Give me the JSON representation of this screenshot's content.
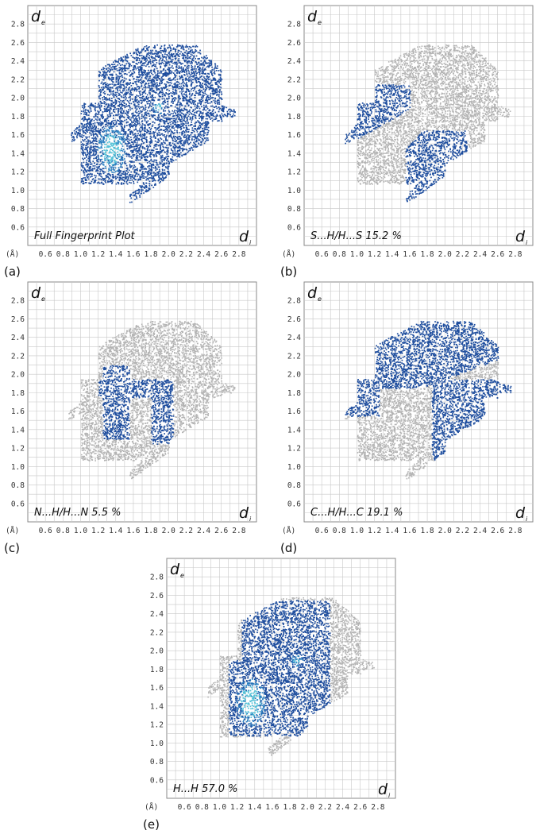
{
  "chart_data": [
    {
      "type": "heatmap",
      "panel_label": "(a)",
      "caption": "Full Fingerprint Plot",
      "xlabel_main": "d",
      "xlabel_sub": "i",
      "ylabel_main": "d",
      "ylabel_sub": "e",
      "unit": "(Å)",
      "xlim": [
        0.4,
        3.0
      ],
      "ylim": [
        0.4,
        3.0
      ],
      "x_ticks": [
        "0.6",
        "0.8",
        "1.0",
        "1.2",
        "1.4",
        "1.6",
        "1.8",
        "2.0",
        "2.2",
        "2.4",
        "2.6",
        "2.8"
      ],
      "y_ticks": [
        "0.6",
        "0.8",
        "1.0",
        "1.2",
        "1.4",
        "1.6",
        "1.8",
        "2.0",
        "2.2",
        "2.4",
        "2.6",
        "2.8"
      ],
      "highlight": "full",
      "grid": true
    },
    {
      "type": "heatmap",
      "panel_label": "(b)",
      "caption": "S...H/H...S   15.2 %",
      "xlabel_main": "d",
      "xlabel_sub": "i",
      "ylabel_main": "d",
      "ylabel_sub": "e",
      "unit": "(Å)",
      "xlim": [
        0.4,
        3.0
      ],
      "ylim": [
        0.4,
        3.0
      ],
      "x_ticks": [
        "0.6",
        "0.8",
        "1.0",
        "1.2",
        "1.4",
        "1.6",
        "1.8",
        "2.0",
        "2.2",
        "2.4",
        "2.6",
        "2.8"
      ],
      "y_ticks": [
        "0.6",
        "0.8",
        "1.0",
        "1.2",
        "1.4",
        "1.6",
        "1.8",
        "2.0",
        "2.2",
        "2.4",
        "2.6",
        "2.8"
      ],
      "highlight": "spikes",
      "grid": true
    },
    {
      "type": "heatmap",
      "panel_label": "(c)",
      "caption": "N...H/H...N  5.5 %",
      "xlabel_main": "d",
      "xlabel_sub": "i",
      "ylabel_main": "d",
      "ylabel_sub": "e",
      "unit": "(Å)",
      "xlim": [
        0.4,
        3.0
      ],
      "ylim": [
        0.4,
        3.0
      ],
      "x_ticks": [
        "0.6",
        "0.8",
        "1.0",
        "1.2",
        "1.4",
        "1.6",
        "1.8",
        "2.0",
        "2.2",
        "2.4",
        "2.6",
        "2.8"
      ],
      "y_ticks": [
        "0.6",
        "0.8",
        "1.0",
        "1.2",
        "1.4",
        "1.6",
        "1.8",
        "2.0",
        "2.2",
        "2.4",
        "2.6",
        "2.8"
      ],
      "highlight": "inner",
      "grid": true
    },
    {
      "type": "heatmap",
      "panel_label": "(d)",
      "caption": "C...H/H...C  19.1 %",
      "xlabel_main": "d",
      "xlabel_sub": "i",
      "ylabel_main": "d",
      "ylabel_sub": "e",
      "unit": "(Å)",
      "xlim": [
        0.4,
        3.0
      ],
      "ylim": [
        0.4,
        3.0
      ],
      "x_ticks": [
        "0.6",
        "0.8",
        "1.0",
        "1.2",
        "1.4",
        "1.6",
        "1.8",
        "2.0",
        "2.2",
        "2.4",
        "2.6",
        "2.8"
      ],
      "y_ticks": [
        "0.6",
        "0.8",
        "1.0",
        "1.2",
        "1.4",
        "1.6",
        "1.8",
        "2.0",
        "2.2",
        "2.4",
        "2.6",
        "2.8"
      ],
      "highlight": "wings",
      "grid": true
    },
    {
      "type": "heatmap",
      "panel_label": "(e)",
      "caption": "H...H 57.0 %",
      "xlabel_main": "d",
      "xlabel_sub": "i",
      "ylabel_main": "d",
      "ylabel_sub": "e",
      "unit": "(Å)",
      "xlim": [
        0.4,
        3.0
      ],
      "ylim": [
        0.4,
        3.0
      ],
      "x_ticks": [
        "0.6",
        "0.8",
        "1.0",
        "1.2",
        "1.4",
        "1.6",
        "1.8",
        "2.0",
        "2.2",
        "2.4",
        "2.6",
        "2.8"
      ],
      "y_ticks": [
        "0.6",
        "0.8",
        "1.0",
        "1.2",
        "1.4",
        "1.6",
        "1.8",
        "2.0",
        "2.2",
        "2.4",
        "2.6",
        "2.8"
      ],
      "highlight": "center",
      "grid": true
    }
  ],
  "colors": {
    "grey_points": "#b3b3b3",
    "blue_low": "#1f4e9e",
    "blue_mid": "#2a7fc0",
    "cyan_high": "#56c3d8",
    "grid": "#c8c8c8",
    "frame": "#8a8a8a"
  }
}
